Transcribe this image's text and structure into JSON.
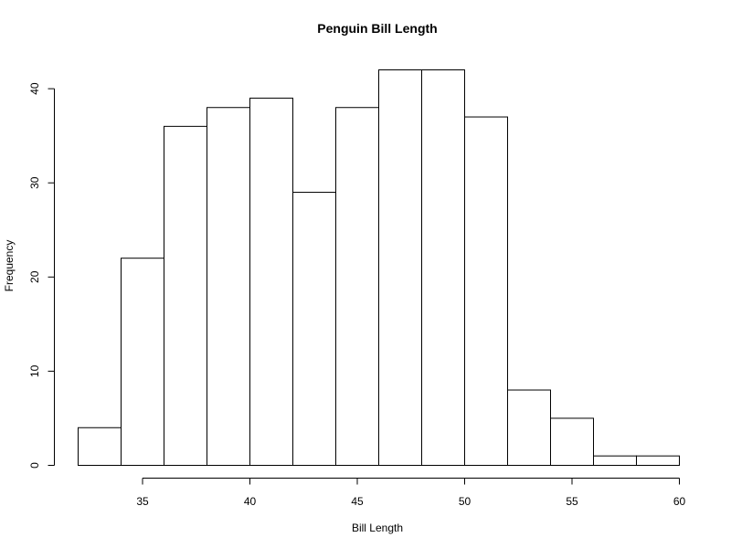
{
  "chart_data": {
    "type": "bar",
    "title": "Penguin Bill Length",
    "xlabel": "Bill Length",
    "ylabel": "Frequency",
    "bins": [
      {
        "start": 32,
        "end": 34,
        "count": 4
      },
      {
        "start": 34,
        "end": 36,
        "count": 22
      },
      {
        "start": 36,
        "end": 38,
        "count": 36
      },
      {
        "start": 38,
        "end": 40,
        "count": 38
      },
      {
        "start": 40,
        "end": 42,
        "count": 39
      },
      {
        "start": 42,
        "end": 44,
        "count": 29
      },
      {
        "start": 44,
        "end": 46,
        "count": 38
      },
      {
        "start": 46,
        "end": 48,
        "count": 42
      },
      {
        "start": 48,
        "end": 50,
        "count": 42
      },
      {
        "start": 50,
        "end": 52,
        "count": 37
      },
      {
        "start": 52,
        "end": 54,
        "count": 8
      },
      {
        "start": 54,
        "end": 56,
        "count": 5
      },
      {
        "start": 56,
        "end": 58,
        "count": 1
      },
      {
        "start": 58,
        "end": 60,
        "count": 1
      }
    ],
    "xticks": [
      35,
      40,
      45,
      50,
      55,
      60
    ],
    "yticks": [
      0,
      10,
      20,
      30,
      40
    ],
    "xlim": [
      32,
      60
    ],
    "ylim": [
      0,
      42
    ],
    "bar_fill": "#ffffff",
    "bar_stroke": "#000000",
    "grid": false
  }
}
